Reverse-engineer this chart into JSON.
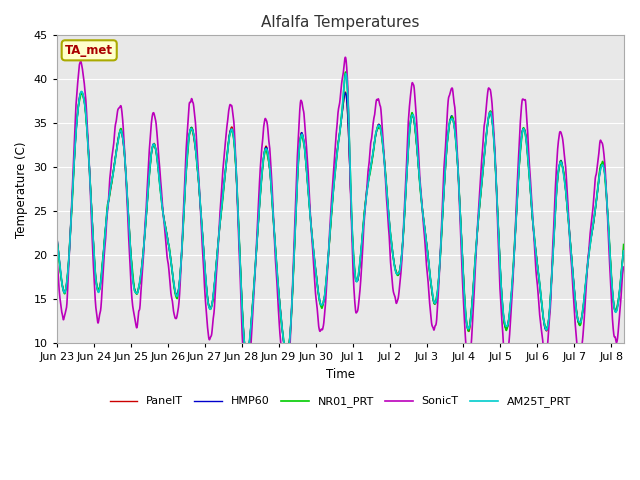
{
  "title": "Alfalfa Temperatures",
  "xlabel": "Time",
  "ylabel": "Temperature (C)",
  "ylim": [
    10,
    45
  ],
  "annotation_text": "TA_met",
  "annotation_color": "#aa0000",
  "annotation_bg": "#ffffcc",
  "annotation_border": "#aaaa00",
  "legend_labels": [
    "PanelT",
    "HMP60",
    "NR01_PRT",
    "SonicT",
    "AM25T_PRT"
  ],
  "line_colors": [
    "#cc0000",
    "#0000cc",
    "#00cc00",
    "#bb00bb",
    "#00cccc"
  ],
  "line_widths": [
    1.0,
    1.0,
    1.2,
    1.2,
    1.2
  ],
  "fig_bg": "#ffffff",
  "plot_bg": "#e8e8e8",
  "grid_color": "#ffffff",
  "n_points": 3000,
  "start_day": 0,
  "end_day": 15.33,
  "tick_labels": [
    "Jun 23",
    "Jun 24",
    "Jun 25",
    "Jun 26",
    "Jun 27",
    "Jun 28",
    "Jun 29",
    "Jun 30",
    "Jul 1",
    "Jul 2",
    "Jul 3",
    "Jul 4",
    "Jul 5",
    "Jul 6",
    "Jul 7",
    "Jul 8"
  ],
  "tick_values": [
    0,
    1,
    2,
    3,
    4,
    5,
    6,
    7,
    8,
    9,
    10,
    11,
    12,
    13,
    14,
    15
  ]
}
